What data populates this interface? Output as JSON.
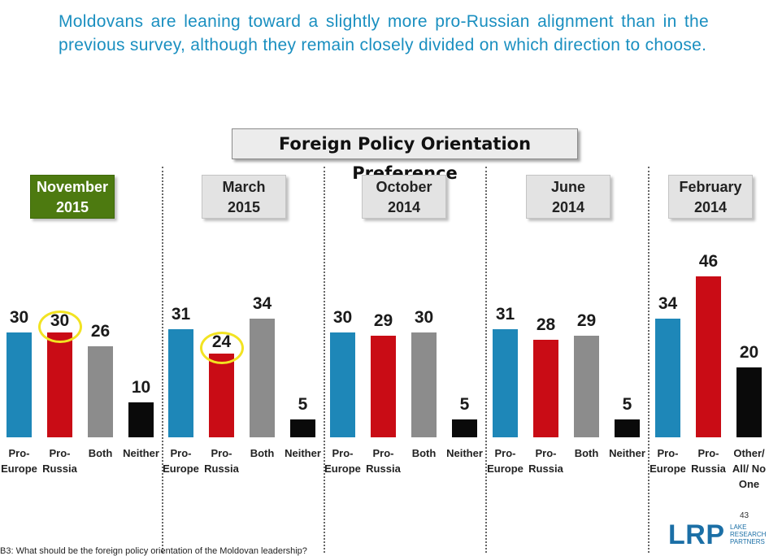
{
  "headline": "Moldovans are leaning toward a slightly more pro-Russian alignment than in the previous survey, although they remain closely divided on which direction to choose.",
  "colors": {
    "pro_europe": "#1e87b8",
    "pro_russia": "#c90c15",
    "both": "#8c8c8c",
    "neither": "#0a0a0a",
    "highlight_ring": "#f2e322",
    "active_period": "#4d7a10"
  },
  "chart_data": {
    "type": "bar",
    "title": "Foreign Policy Orientation Preference",
    "ylim": [
      0,
      50
    ],
    "groups": [
      {
        "period_line1": "November",
        "period_line2": "2015",
        "active": true,
        "bars": [
          {
            "label1": "Pro-",
            "label2": "Europe",
            "label3": "",
            "value": 30,
            "color": "#1e87b8",
            "ring": false
          },
          {
            "label1": "Pro-",
            "label2": "Russia",
            "label3": "",
            "value": 30,
            "color": "#c90c15",
            "ring": true
          },
          {
            "label1": "Both",
            "label2": "",
            "label3": "",
            "value": 26,
            "color": "#8c8c8c",
            "ring": false
          },
          {
            "label1": "Neither",
            "label2": "",
            "label3": "",
            "value": 10,
            "color": "#0a0a0a",
            "ring": false
          }
        ]
      },
      {
        "period_line1": "March",
        "period_line2": "2015",
        "active": false,
        "bars": [
          {
            "label1": "Pro-",
            "label2": "Europe",
            "label3": "",
            "value": 31,
            "color": "#1e87b8",
            "ring": false
          },
          {
            "label1": "Pro-",
            "label2": "Russia",
            "label3": "",
            "value": 24,
            "color": "#c90c15",
            "ring": true
          },
          {
            "label1": "Both",
            "label2": "",
            "label3": "",
            "value": 34,
            "color": "#8c8c8c",
            "ring": false
          },
          {
            "label1": "Neither",
            "label2": "",
            "label3": "",
            "value": 5,
            "color": "#0a0a0a",
            "ring": false
          }
        ]
      },
      {
        "period_line1": "October",
        "period_line2": "2014",
        "active": false,
        "bars": [
          {
            "label1": "Pro-",
            "label2": "Europe",
            "label3": "",
            "value": 30,
            "color": "#1e87b8",
            "ring": false
          },
          {
            "label1": "Pro-",
            "label2": "Russia",
            "label3": "",
            "value": 29,
            "color": "#c90c15",
            "ring": false
          },
          {
            "label1": "Both",
            "label2": "",
            "label3": "",
            "value": 30,
            "color": "#8c8c8c",
            "ring": false
          },
          {
            "label1": "Neither",
            "label2": "",
            "label3": "",
            "value": 5,
            "color": "#0a0a0a",
            "ring": false
          }
        ]
      },
      {
        "period_line1": "June",
        "period_line2": "2014",
        "active": false,
        "bars": [
          {
            "label1": "Pro-",
            "label2": "Europe",
            "label3": "",
            "value": 31,
            "color": "#1e87b8",
            "ring": false
          },
          {
            "label1": "Pro-",
            "label2": "Russia",
            "label3": "",
            "value": 28,
            "color": "#c90c15",
            "ring": false
          },
          {
            "label1": "Both",
            "label2": "",
            "label3": "",
            "value": 29,
            "color": "#8c8c8c",
            "ring": false
          },
          {
            "label1": "Neither",
            "label2": "",
            "label3": "",
            "value": 5,
            "color": "#0a0a0a",
            "ring": false
          }
        ]
      },
      {
        "period_line1": "February",
        "period_line2": "2014",
        "active": false,
        "bars": [
          {
            "label1": "Pro-",
            "label2": "Europe",
            "label3": "",
            "value": 34,
            "color": "#1e87b8",
            "ring": false
          },
          {
            "label1": "Pro-",
            "label2": "Russia",
            "label3": "",
            "value": 46,
            "color": "#c90c15",
            "ring": false
          },
          {
            "label1": "Other/",
            "label2": "All/ No",
            "label3": "One",
            "value": 20,
            "color": "#0a0a0a",
            "ring": false
          }
        ]
      }
    ]
  },
  "page_number": "43",
  "logo": {
    "mark": "LRP",
    "line1": "LAKE",
    "line2": "RESEARCH",
    "line3": "PARTNERS"
  },
  "footnote": "B3: What should be the foreign policy orientation of the Moldovan leadership?"
}
